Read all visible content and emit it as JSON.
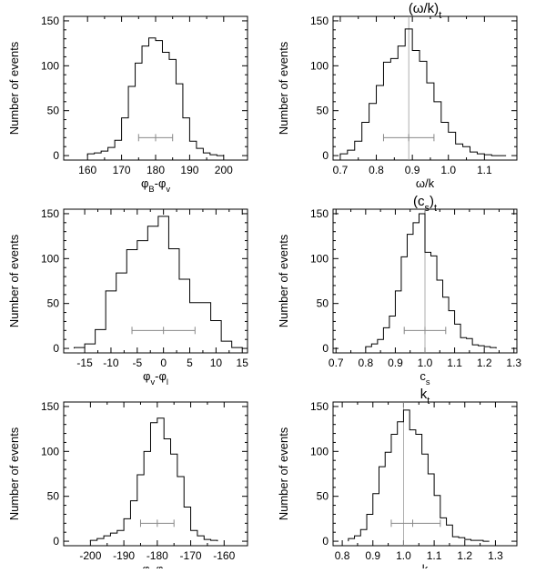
{
  "chart_data": [
    {
      "type": "histogram",
      "title": "",
      "xlabel": "φ_B-φ_v",
      "xlabel_parts": [
        {
          "t": "φ"
        },
        {
          "t": "B",
          "s": "sub"
        },
        {
          "t": "-φ"
        },
        {
          "t": "v",
          "s": "sub"
        }
      ],
      "ylabel": "Number of events",
      "xlim": [
        153,
        207
      ],
      "ylim": [
        -5,
        155
      ],
      "xticks": [
        160,
        170,
        180,
        190,
        200
      ],
      "yticks": [
        0,
        50,
        100,
        150
      ],
      "bin_edges": [
        160,
        162,
        164,
        166,
        168,
        170,
        172,
        174,
        176,
        178,
        180,
        182,
        184,
        186,
        188,
        190,
        192,
        194,
        196,
        198,
        200
      ],
      "counts": [
        2,
        3,
        5,
        9,
        17,
        42,
        77,
        103,
        122,
        131,
        128,
        115,
        107,
        80,
        42,
        16,
        8,
        3,
        1,
        0
      ],
      "errorbar": {
        "center": 180,
        "low": 175,
        "high": 185,
        "y": 20
      },
      "ref_line": null
    },
    {
      "type": "histogram",
      "title": "(ω/k)_t",
      "title_parts": [
        {
          "t": "(ω/k)"
        },
        {
          "t": "t",
          "s": "sub"
        }
      ],
      "xlabel": "ω/k",
      "xlabel_parts": [
        {
          "t": "ω/k"
        }
      ],
      "ylabel": "Number of events",
      "xlim": [
        0.68,
        1.19
      ],
      "ylim": [
        -5,
        155
      ],
      "xticks": [
        0.7,
        0.8,
        0.9,
        1.0,
        1.1
      ],
      "xtick_labels": [
        "0.7",
        "0.8",
        "0.9",
        "1.0",
        "1.1"
      ],
      "yticks": [
        0,
        50,
        100,
        150
      ],
      "bin_edges": [
        0.7,
        0.72,
        0.74,
        0.76,
        0.78,
        0.8,
        0.82,
        0.84,
        0.86,
        0.88,
        0.9,
        0.92,
        0.94,
        0.96,
        0.98,
        1.0,
        1.02,
        1.04,
        1.06,
        1.08,
        1.1,
        1.12,
        1.14,
        1.16
      ],
      "counts": [
        2,
        6,
        16,
        37,
        58,
        78,
        104,
        108,
        122,
        141,
        117,
        105,
        81,
        60,
        37,
        26,
        13,
        10,
        4,
        2,
        1,
        0,
        0
      ],
      "errorbar": {
        "center": 0.89,
        "low": 0.82,
        "high": 0.96,
        "y": 20
      },
      "ref_line": 0.89
    },
    {
      "type": "histogram",
      "title": "",
      "xlabel": "φ_v-φ_l",
      "xlabel_parts": [
        {
          "t": "φ"
        },
        {
          "t": "v",
          "s": "sub"
        },
        {
          "t": "-φ"
        },
        {
          "t": "l",
          "s": "sub"
        }
      ],
      "ylabel": "Number of events",
      "xlim": [
        -19,
        16
      ],
      "ylim": [
        -5,
        155
      ],
      "xticks": [
        -15,
        -10,
        -5,
        0,
        5,
        10,
        15
      ],
      "yticks": [
        0,
        50,
        100,
        150
      ],
      "bin_edges": [
        -17,
        -15,
        -13,
        -11,
        -9,
        -7,
        -5,
        -3,
        -1,
        1,
        3,
        5,
        7,
        9,
        11,
        13,
        15
      ],
      "counts": [
        1,
        5,
        21,
        64,
        84,
        110,
        120,
        136,
        147,
        111,
        77,
        51,
        51,
        31,
        8,
        1
      ],
      "errorbar": {
        "center": 0,
        "low": -6,
        "high": 6,
        "y": 20
      },
      "ref_line": null
    },
    {
      "type": "histogram",
      "title": "(c_s)_t",
      "title_parts": [
        {
          "t": "(c"
        },
        {
          "t": "s",
          "s": "sub"
        },
        {
          "t": ")"
        },
        {
          "t": "t",
          "s": "sub"
        }
      ],
      "xlabel": "c_s",
      "xlabel_parts": [
        {
          "t": "c"
        },
        {
          "t": "s",
          "s": "sub"
        }
      ],
      "ylabel": "Number of events",
      "xlim": [
        0.69,
        1.31
      ],
      "ylim": [
        -5,
        155
      ],
      "xticks": [
        0.7,
        0.8,
        0.9,
        1.0,
        1.1,
        1.2,
        1.3
      ],
      "xtick_labels": [
        "0.7",
        "0.8",
        "0.9",
        "1.0",
        "1.1",
        "1.2",
        "1.3"
      ],
      "yticks": [
        0,
        50,
        100,
        150
      ],
      "bin_edges": [
        0.8,
        0.82,
        0.84,
        0.86,
        0.88,
        0.9,
        0.92,
        0.94,
        0.96,
        0.98,
        1.0,
        1.02,
        1.04,
        1.06,
        1.08,
        1.1,
        1.12,
        1.14,
        1.16,
        1.18,
        1.2,
        1.22,
        1.24
      ],
      "counts": [
        2,
        5,
        10,
        23,
        36,
        64,
        102,
        127,
        140,
        150,
        107,
        103,
        76,
        57,
        42,
        27,
        12,
        11,
        4,
        3,
        2,
        1
      ],
      "errorbar": {
        "center": 1.0,
        "low": 0.93,
        "high": 1.07,
        "y": 20
      },
      "ref_line": 1.0
    },
    {
      "type": "histogram",
      "title": "",
      "xlabel": "φ_l-φ_B",
      "xlabel_parts": [
        {
          "t": "φ"
        },
        {
          "t": "l",
          "s": "sub"
        },
        {
          "t": "-φ"
        },
        {
          "t": "B",
          "s": "sub"
        }
      ],
      "ylabel": "Number of events",
      "xlim": [
        -208,
        -153
      ],
      "ylim": [
        -5,
        155
      ],
      "xticks": [
        -200,
        -190,
        -180,
        -170,
        -160
      ],
      "yticks": [
        0,
        50,
        100,
        150
      ],
      "bin_edges": [
        -200,
        -198,
        -196,
        -194,
        -192,
        -190,
        -188,
        -186,
        -184,
        -182,
        -180,
        -178,
        -176,
        -174,
        -172,
        -170,
        -168,
        -166,
        -164,
        -162
      ],
      "counts": [
        1,
        3,
        6,
        9,
        12,
        25,
        45,
        74,
        100,
        132,
        137,
        114,
        97,
        72,
        38,
        12,
        6,
        2,
        1
      ],
      "errorbar": {
        "center": -180,
        "low": -185,
        "high": -175,
        "y": 20
      },
      "ref_line": null
    },
    {
      "type": "histogram",
      "title": "k_t",
      "title_parts": [
        {
          "t": "k"
        },
        {
          "t": "t",
          "s": "sub"
        }
      ],
      "xlabel": "k",
      "xlabel_parts": [
        {
          "t": "k"
        }
      ],
      "ylabel": "Number of events",
      "xlim": [
        0.77,
        1.37
      ],
      "ylim": [
        -5,
        155
      ],
      "xticks": [
        0.8,
        0.9,
        1.0,
        1.1,
        1.2,
        1.3
      ],
      "xtick_labels": [
        "0.8",
        "0.9",
        "1.0",
        "1.1",
        "1.2",
        "1.3"
      ],
      "yticks": [
        0,
        50,
        100,
        150
      ],
      "bin_edges": [
        0.82,
        0.84,
        0.86,
        0.88,
        0.9,
        0.92,
        0.94,
        0.96,
        0.98,
        1.0,
        1.02,
        1.04,
        1.06,
        1.08,
        1.1,
        1.12,
        1.14,
        1.16,
        1.18,
        1.2,
        1.22,
        1.24,
        1.26,
        1.28
      ],
      "counts": [
        3,
        6,
        13,
        30,
        53,
        83,
        99,
        119,
        133,
        146,
        124,
        119,
        97,
        75,
        51,
        26,
        18,
        5,
        4,
        2,
        1,
        1,
        0
      ],
      "errorbar": {
        "center": 1.03,
        "low": 0.96,
        "high": 1.12,
        "y": 20
      },
      "ref_line": 1.0
    }
  ],
  "colors": {
    "line": "#000000",
    "errorbar": "#888888",
    "ref_line": "#999999"
  }
}
